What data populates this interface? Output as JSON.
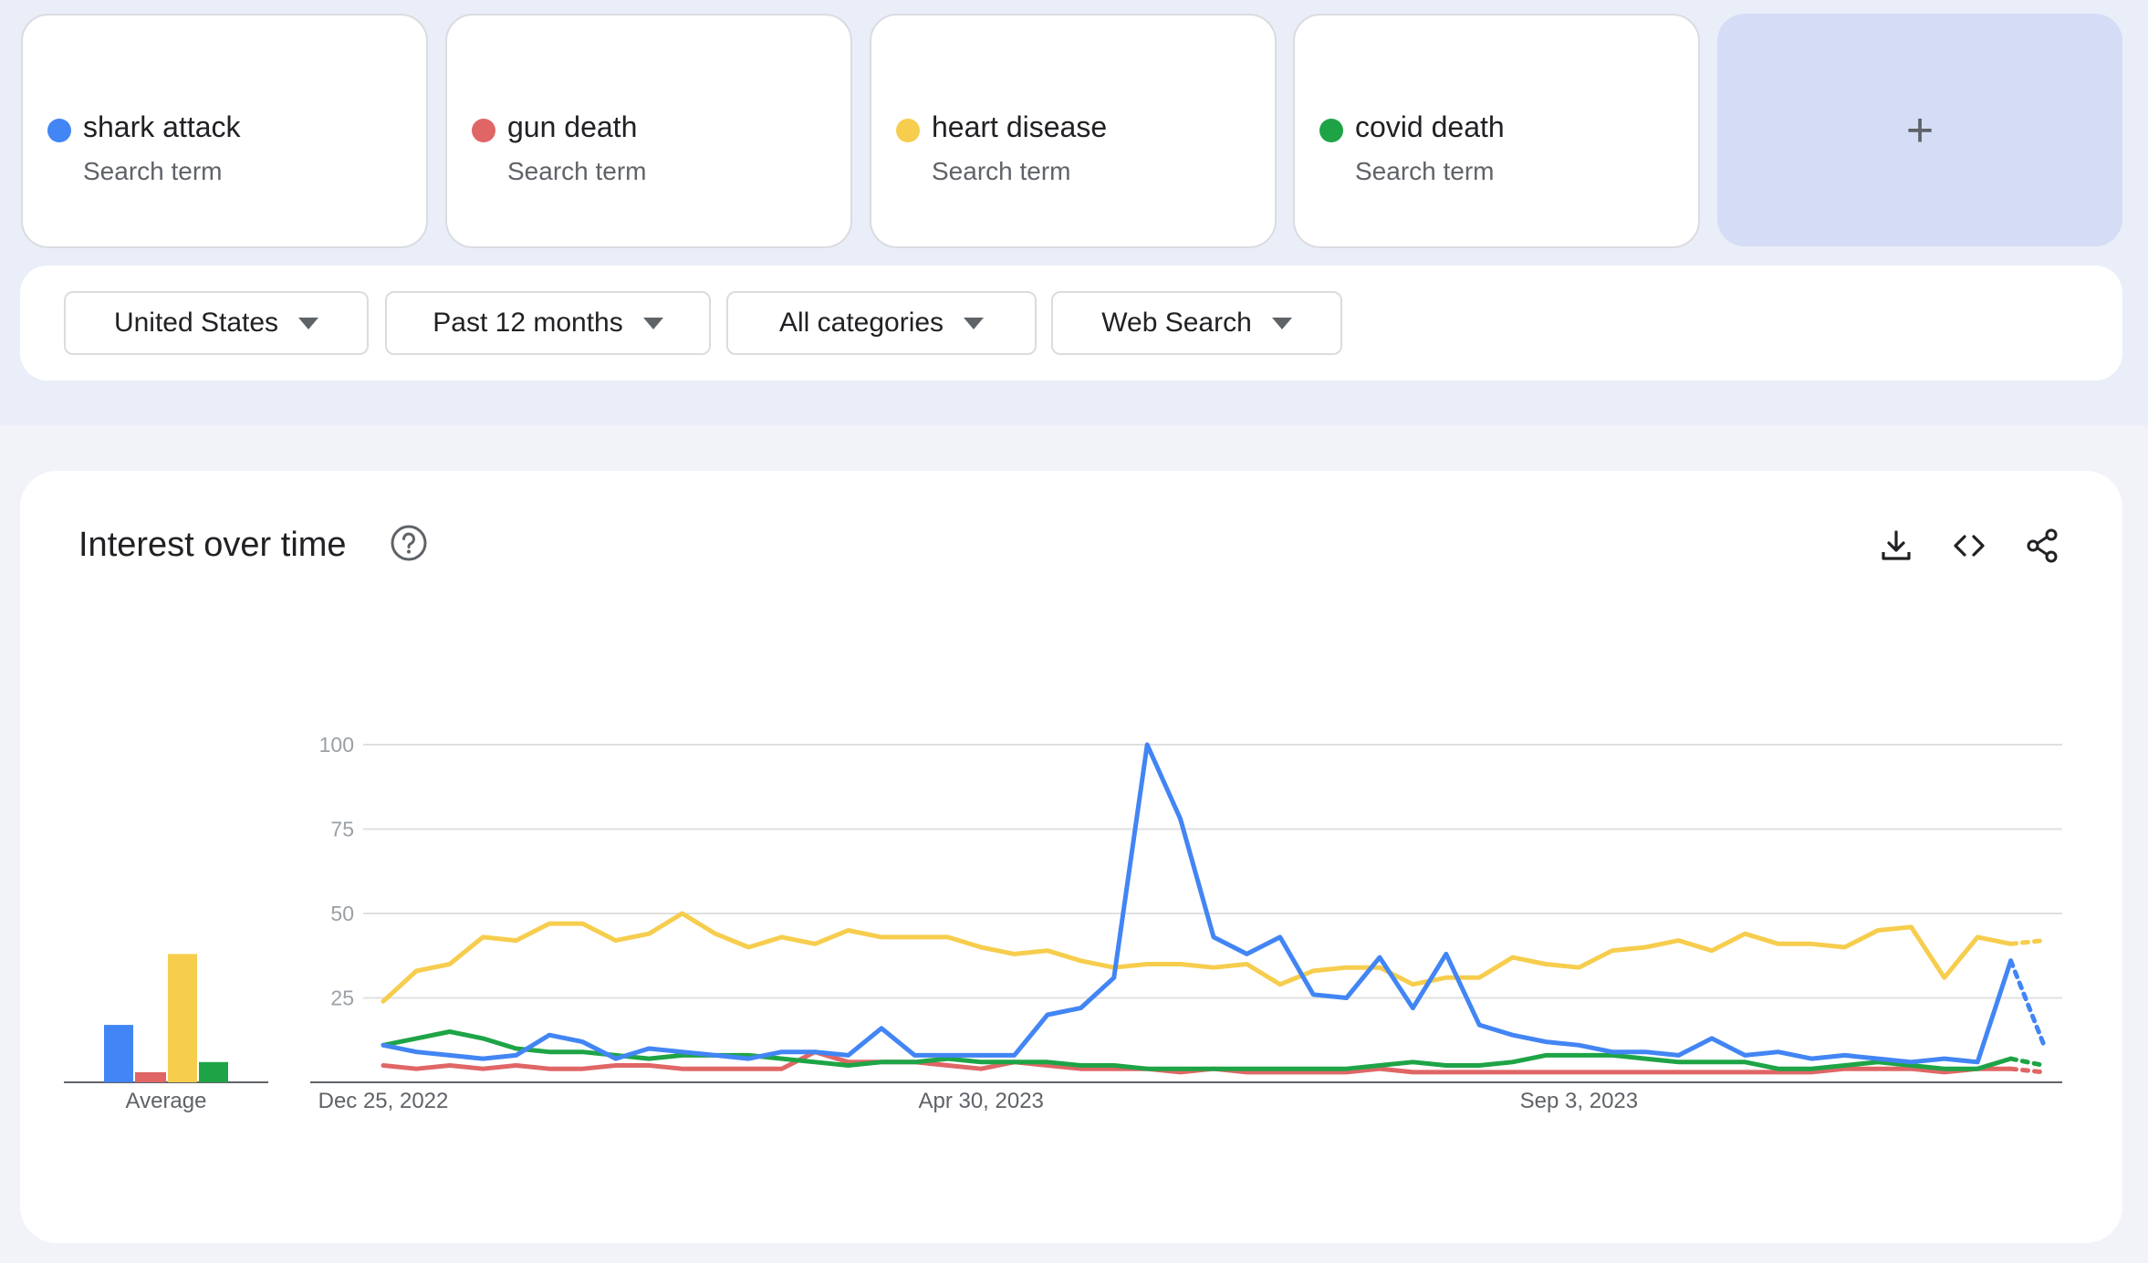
{
  "terms": [
    {
      "label": "shark attack",
      "sublabel": "Search term",
      "color": "#4285f4"
    },
    {
      "label": "gun death",
      "sublabel": "Search term",
      "color": "#e06666"
    },
    {
      "label": "heart disease",
      "sublabel": "Search term",
      "color": "#f6cd4d"
    },
    {
      "label": "covid death",
      "sublabel": "Search term",
      "color": "#1ea446"
    }
  ],
  "add_button_label": "+",
  "filters": {
    "region": "United States",
    "period": "Past 12 months",
    "category": "All categories",
    "search_type": "Web Search"
  },
  "panel": {
    "title": "Interest over time",
    "help_icon": "help-circle-icon",
    "actions": [
      "download-icon",
      "embed-code-icon",
      "share-icon"
    ]
  },
  "chart_data": {
    "type": "line",
    "title": "Interest over time",
    "ylim": [
      0,
      100
    ],
    "y_ticks": [
      "100",
      "75",
      "50",
      "25"
    ],
    "x_tick_labels": [
      "Dec 25, 2022",
      "Apr 30, 2023",
      "Sep 3, 2023"
    ],
    "grid": true,
    "average_label": "Average",
    "averages": [
      17,
      3,
      38,
      6
    ],
    "partial_last_point": true,
    "series": [
      {
        "name": "shark attack",
        "color": "#4285f4",
        "values": [
          11,
          9,
          8,
          7,
          8,
          14,
          12,
          7,
          10,
          9,
          8,
          7,
          9,
          9,
          8,
          16,
          8,
          8,
          8,
          8,
          20,
          22,
          31,
          100,
          78,
          43,
          38,
          43,
          26,
          25,
          37,
          22,
          38,
          17,
          14,
          12,
          11,
          9,
          9,
          8,
          13,
          8,
          9,
          7,
          8,
          7,
          6,
          7,
          6,
          36,
          11
        ]
      },
      {
        "name": "gun death",
        "color": "#e06666",
        "values": [
          5,
          4,
          5,
          4,
          5,
          4,
          4,
          5,
          5,
          4,
          4,
          4,
          4,
          9,
          6,
          6,
          6,
          5,
          4,
          6,
          5,
          4,
          4,
          4,
          3,
          4,
          3,
          3,
          3,
          3,
          4,
          3,
          3,
          3,
          3,
          3,
          3,
          3,
          3,
          3,
          3,
          3,
          3,
          3,
          4,
          4,
          4,
          3,
          4,
          4,
          3
        ]
      },
      {
        "name": "heart disease",
        "color": "#f6cd4d",
        "values": [
          24,
          33,
          35,
          43,
          42,
          47,
          47,
          42,
          44,
          50,
          44,
          40,
          43,
          41,
          45,
          43,
          43,
          43,
          40,
          38,
          39,
          36,
          34,
          35,
          35,
          34,
          35,
          29,
          33,
          34,
          34,
          29,
          31,
          31,
          37,
          35,
          34,
          39,
          40,
          42,
          39,
          44,
          41,
          41,
          40,
          45,
          46,
          31,
          43,
          41,
          42
        ]
      },
      {
        "name": "covid death",
        "color": "#1ea446",
        "values": [
          11,
          13,
          15,
          13,
          10,
          9,
          9,
          8,
          7,
          8,
          8,
          8,
          7,
          6,
          5,
          6,
          6,
          7,
          6,
          6,
          6,
          5,
          5,
          4,
          4,
          4,
          4,
          4,
          4,
          4,
          5,
          6,
          5,
          5,
          6,
          8,
          8,
          8,
          7,
          6,
          6,
          6,
          4,
          4,
          5,
          6,
          5,
          4,
          4,
          7,
          5
        ]
      }
    ]
  }
}
